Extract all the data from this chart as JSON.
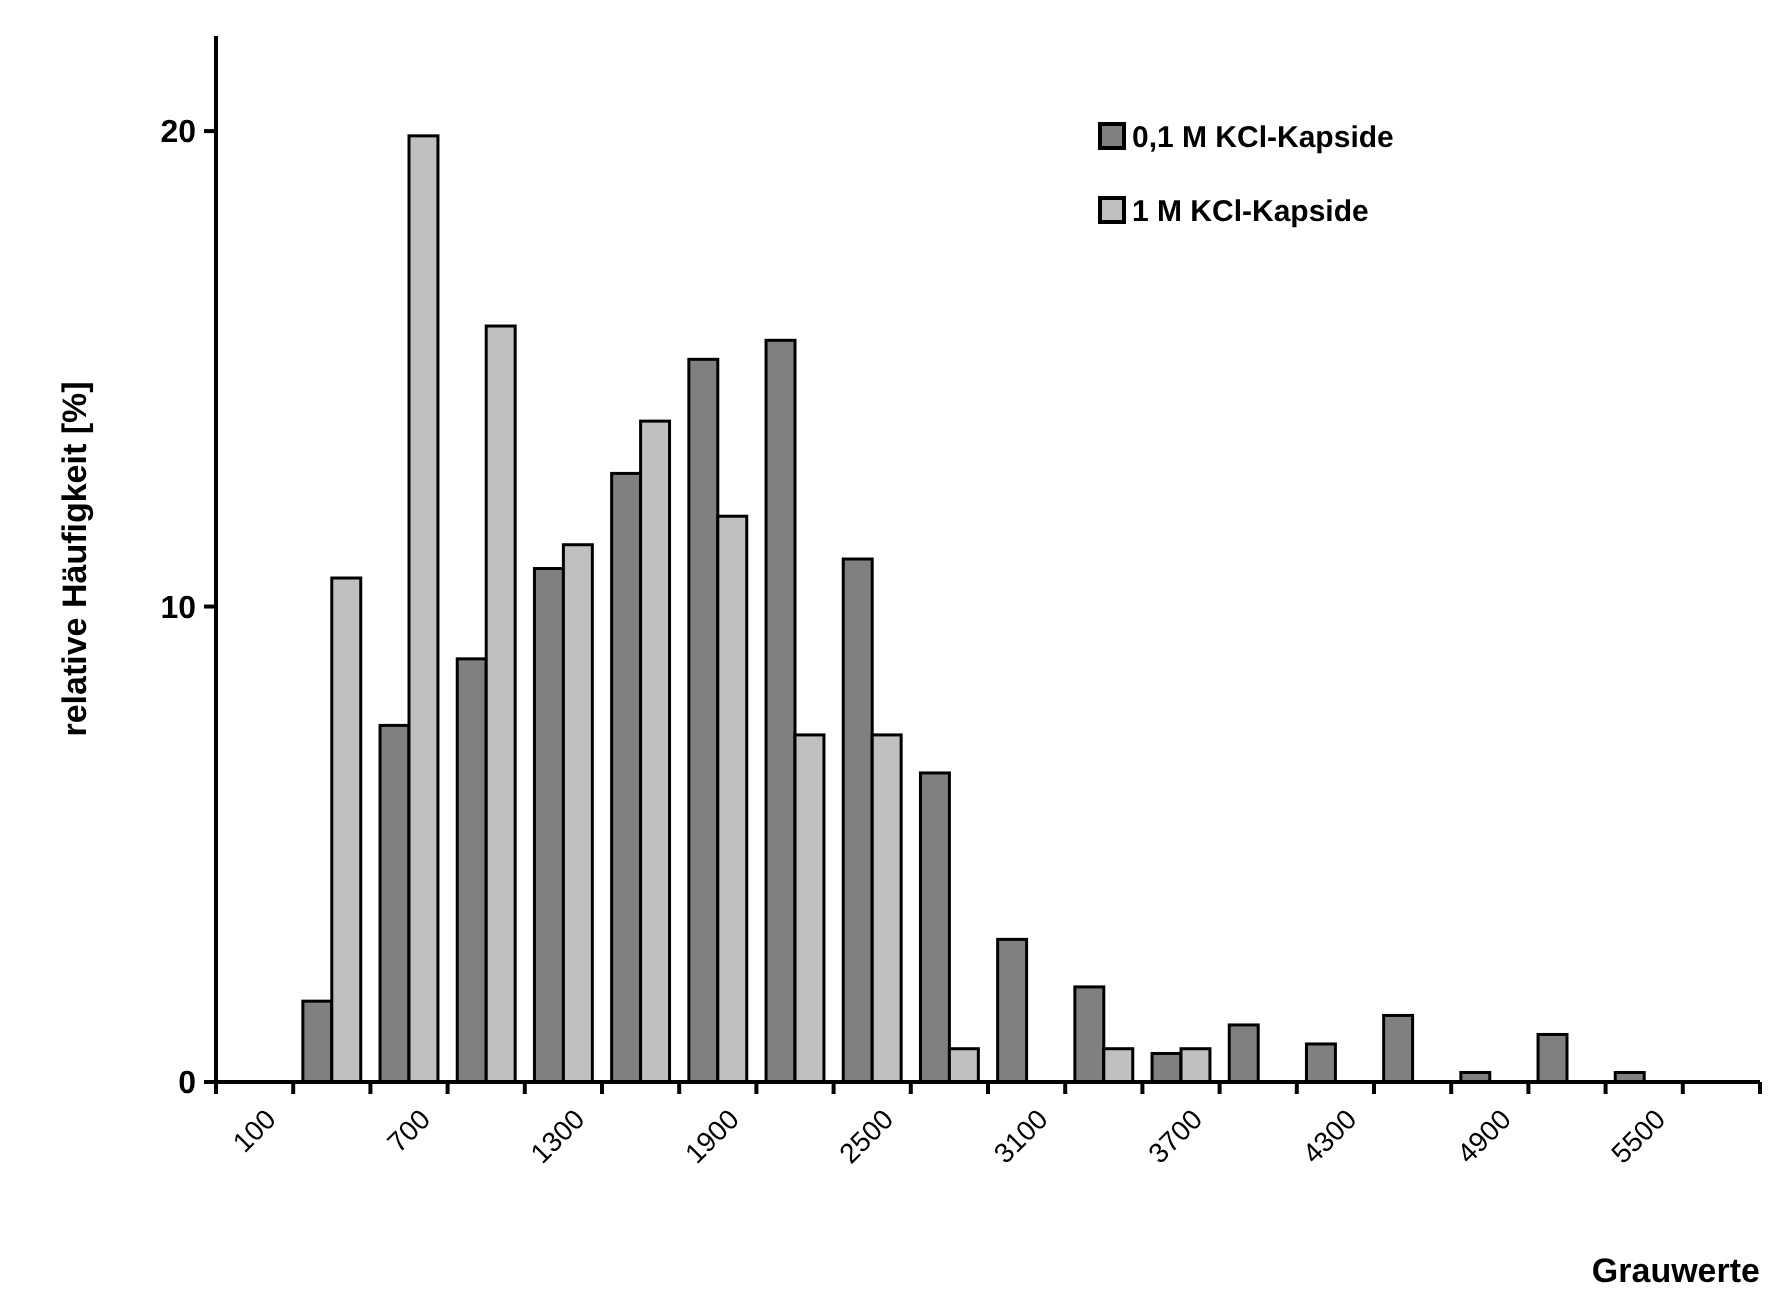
{
  "chart_data": {
    "type": "bar",
    "xlabel": "Grauwerte",
    "ylabel": "relative Häufigkeit [%]",
    "categories": [
      "100",
      null,
      "700",
      null,
      "1300",
      null,
      "1900",
      null,
      "2500",
      null,
      "3100",
      null,
      "3700",
      null,
      "4300",
      null,
      "4900",
      null,
      "5500",
      null
    ],
    "series": [
      {
        "name": "0,1 M KCl-Kapside",
        "color": "#808080",
        "values": [
          null,
          1.7,
          7.5,
          8.9,
          10.8,
          12.8,
          15.2,
          15.6,
          11.0,
          6.5,
          3.0,
          2.0,
          0.6,
          1.2,
          0.8,
          1.4,
          0.2,
          1.0,
          0.2,
          null
        ]
      },
      {
        "name": "1 M KCl-Kapside",
        "color": "#c0c0c0",
        "values": [
          null,
          10.6,
          19.9,
          15.9,
          11.3,
          13.9,
          11.9,
          7.3,
          7.3,
          0.7,
          null,
          0.7,
          0.7,
          null,
          null,
          null,
          null,
          null,
          null,
          null
        ]
      }
    ],
    "ylim": [
      0,
      22
    ],
    "yticks": [
      0,
      10,
      20
    ],
    "grid": false,
    "legend": "top right"
  }
}
